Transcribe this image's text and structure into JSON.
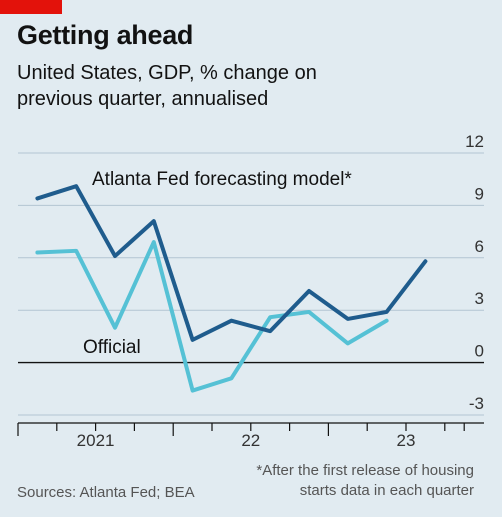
{
  "header": {
    "title": "Getting ahead",
    "subtitle_line1": "United States, GDP, % change on",
    "subtitle_line2": "previous quarter, annualised"
  },
  "footer": {
    "sources": "Sources: Atlanta Fed; BEA",
    "note_line1": "*After the first release of housing",
    "note_line2": "starts data in each quarter"
  },
  "colors": {
    "background": "#e1ebf1",
    "brand": "#e3120b",
    "atlanta": "#1f5c8d",
    "official": "#55c1d5",
    "grid": "#b3c5d2",
    "axis": "#121212"
  },
  "chart_data": {
    "type": "line",
    "ylim": [
      -3,
      12
    ],
    "yticks": [
      "12",
      "9",
      "6",
      "3",
      "0",
      "-3"
    ],
    "ytick_values": [
      12,
      9,
      6,
      3,
      0,
      -3
    ],
    "year_labels": [
      {
        "label": "2021",
        "at": 2.0
      },
      {
        "label": "22",
        "at": 6.0
      },
      {
        "label": "23",
        "at": 10.0
      }
    ],
    "quarter_ticks": [
      0,
      1,
      2,
      3,
      4,
      5,
      6,
      7,
      8,
      9,
      10,
      11
    ],
    "series": [
      {
        "name": "Atlanta Fed forecasting model*",
        "color": "#1f5c8d",
        "x": [
          0.5,
          1.5,
          2.5,
          3.5,
          4.5,
          5.5,
          6.5,
          7.5,
          8.5,
          9.5,
          10.5
        ],
        "values": [
          9.4,
          10.1,
          6.1,
          8.1,
          1.3,
          2.4,
          1.8,
          4.1,
          2.5,
          2.9,
          5.8
        ]
      },
      {
        "name": "Official",
        "color": "#55c1d5",
        "x": [
          0.5,
          1.5,
          2.5,
          3.5,
          4.5,
          5.5,
          6.5,
          7.5,
          8.5,
          9.5
        ],
        "values": [
          6.3,
          6.4,
          2.0,
          6.9,
          -1.6,
          -0.9,
          2.6,
          2.9,
          1.1,
          2.4
        ]
      }
    ]
  }
}
